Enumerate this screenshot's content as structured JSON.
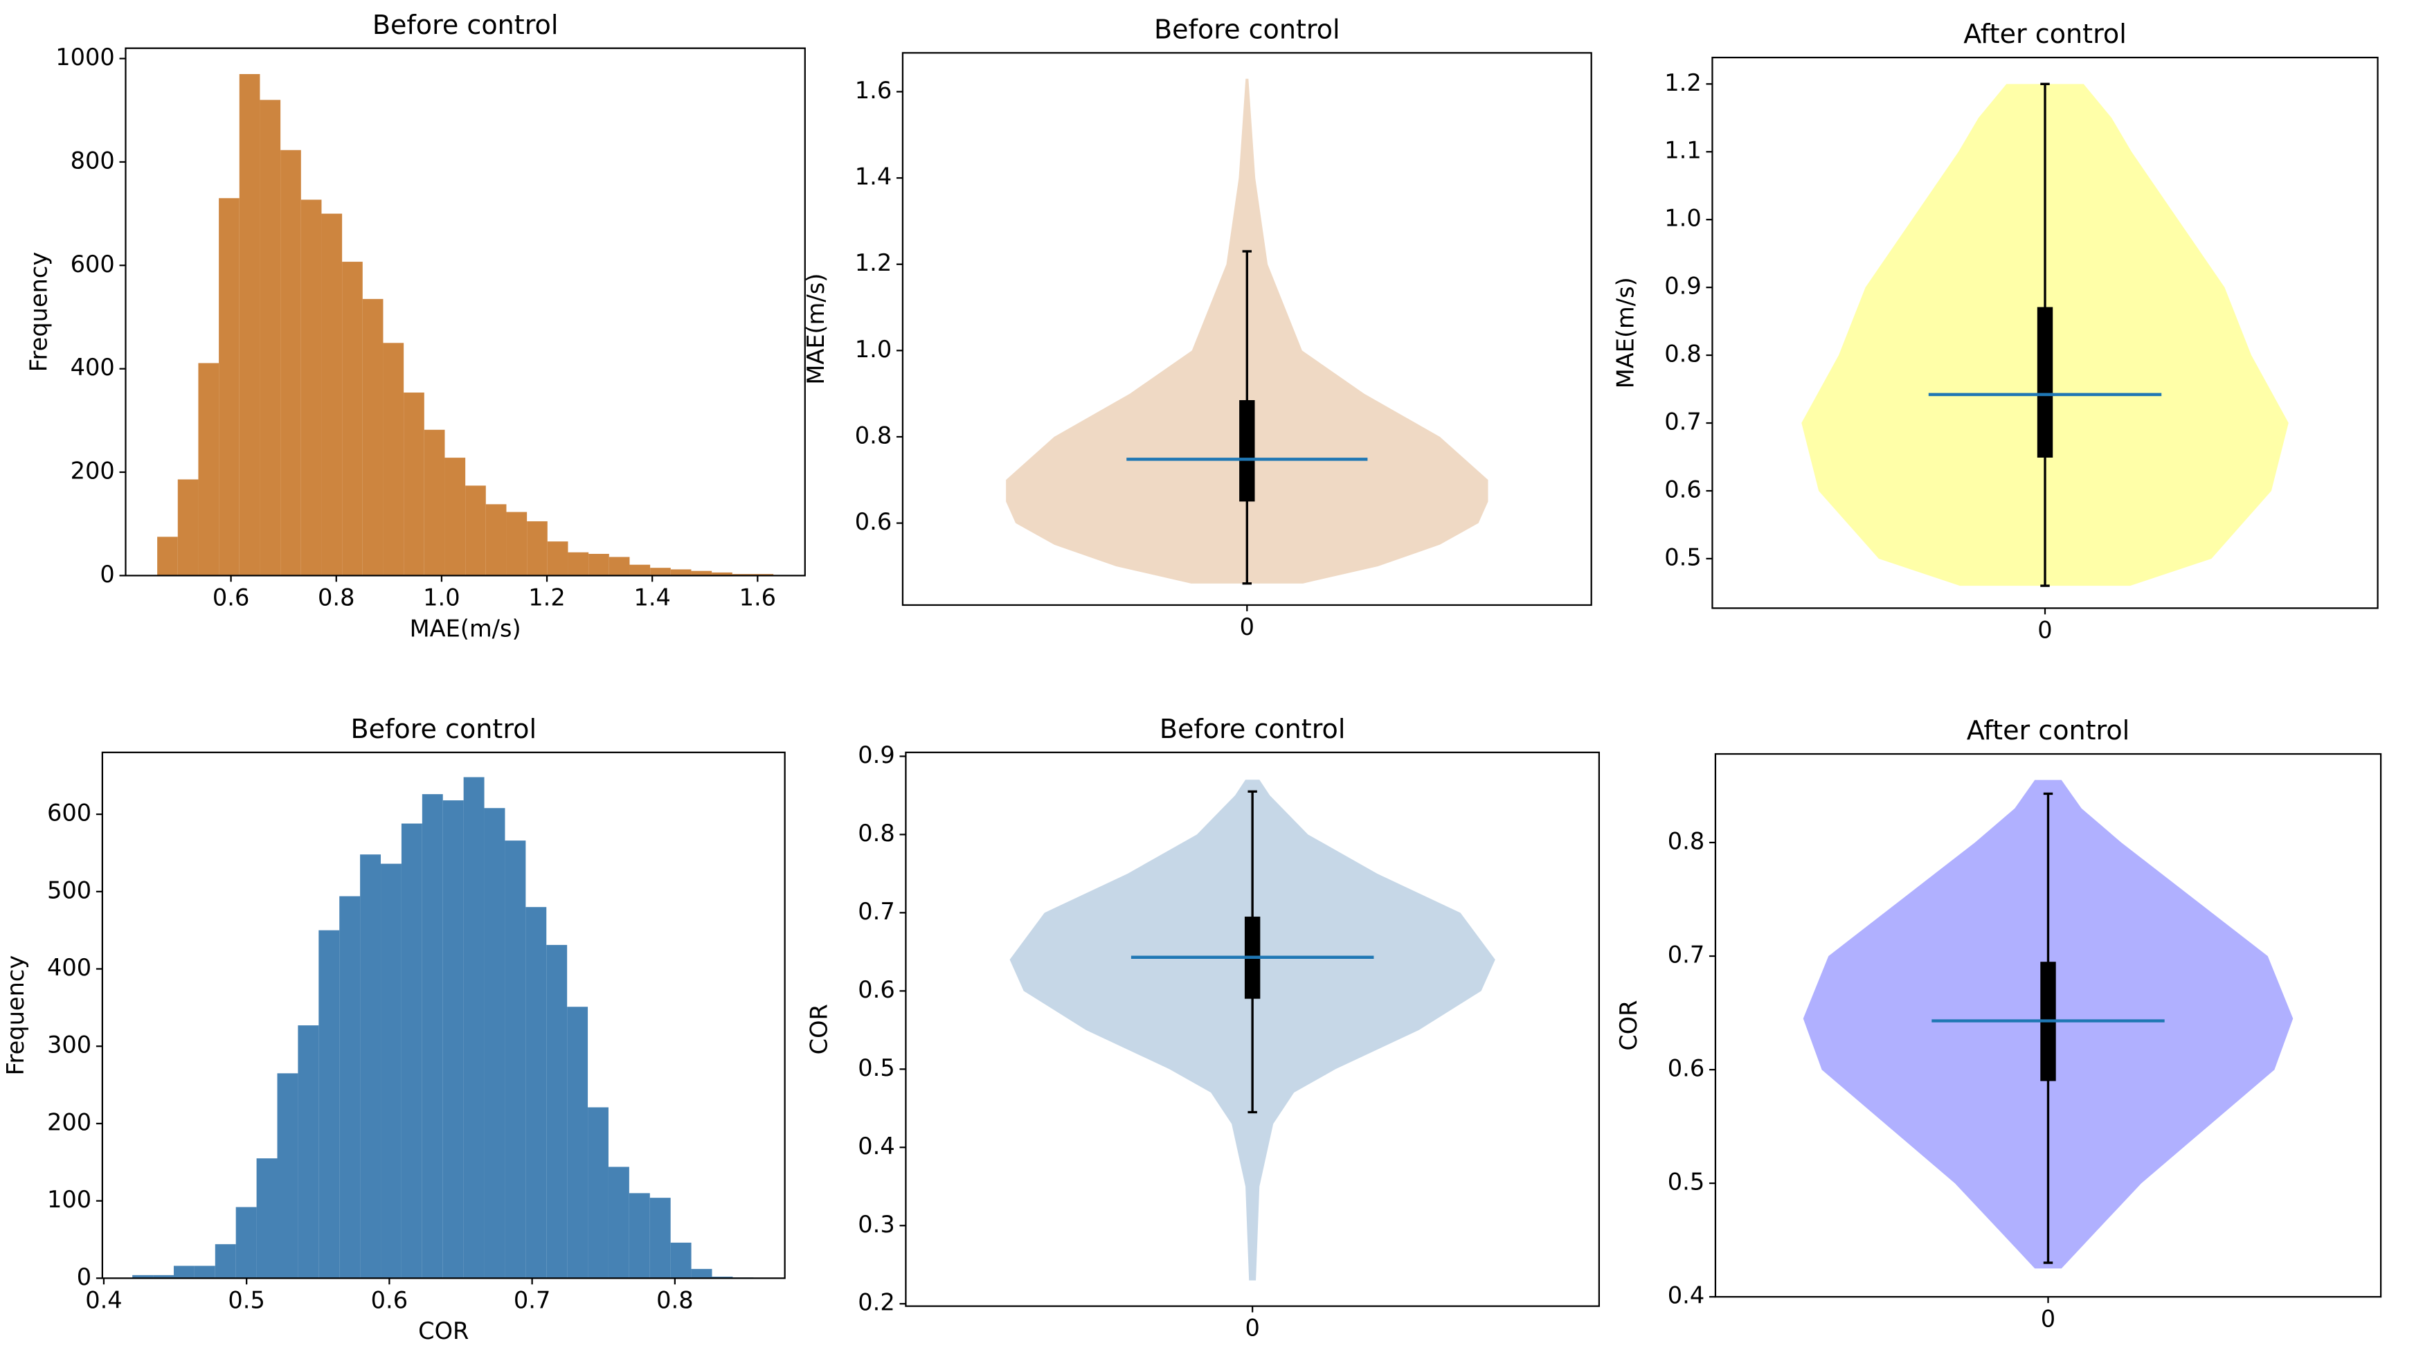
{
  "chart_data": [
    {
      "type": "histogram",
      "title": "Before control",
      "xlabel": "MAE(m/s)",
      "ylabel": "Frequency",
      "color": "#cd853f",
      "bins": [
        0.46,
        0.499,
        0.538,
        0.577,
        0.616,
        0.655,
        0.694,
        0.733,
        0.772,
        0.811,
        0.85,
        0.889,
        0.928,
        0.967,
        1.006,
        1.045,
        1.084,
        1.123,
        1.162,
        1.201,
        1.24,
        1.279,
        1.318,
        1.357,
        1.396,
        1.435,
        1.474,
        1.513,
        1.552,
        1.591,
        1.63
      ],
      "counts": [
        75,
        186,
        411,
        730,
        970,
        920,
        823,
        727,
        700,
        607,
        535,
        450,
        354,
        282,
        228,
        174,
        138,
        123,
        105,
        66,
        45,
        42,
        36,
        21,
        15,
        12,
        9,
        6,
        3,
        3
      ],
      "xlim": [
        0.4,
        1.69
      ],
      "xticks": [
        0.6,
        0.8,
        {
          "value": 1,
          "label": "1.0"
        },
        1.2,
        1.4,
        1.6
      ],
      "ylim": [
        0,
        1020
      ],
      "yticks": [
        0,
        200,
        400,
        600,
        800,
        1000
      ]
    },
    {
      "type": "violin",
      "title": "Before control",
      "ylabel": "MAE(m/s)",
      "color": "#efd9c4",
      "kde": {
        "y": [
          0.46,
          0.5,
          0.55,
          0.6,
          0.65,
          0.7,
          0.8,
          0.9,
          1.0,
          1.2,
          1.4,
          1.63
        ],
        "half_width": [
          0.081,
          0.19,
          0.28,
          0.336,
          0.35,
          0.35,
          0.28,
          0.17,
          0.08,
          0.03,
          0.012,
          0.002
        ]
      },
      "quartiles": [
        0.65,
        0.885
      ],
      "whiskers": [
        0.46,
        1.23
      ],
      "mean": 0.748,
      "xlim": [
        -0.5,
        0.5
      ],
      "xticks": [
        0
      ],
      "ylim": [
        0.41,
        1.69
      ],
      "yticks": [
        0.6,
        0.8,
        {
          "value": 1,
          "label": "1.0"
        },
        1.2,
        1.4,
        1.6
      ]
    },
    {
      "type": "violin",
      "title": "After control",
      "ylabel": "MAE(m/s)",
      "color": "#ffffa8",
      "kde": {
        "y": [
          0.46,
          0.5,
          0.6,
          0.7,
          0.8,
          0.9,
          1.0,
          1.1,
          1.15,
          1.2
        ],
        "half_width": [
          0.128,
          0.25,
          0.34,
          0.366,
          0.31,
          0.27,
          0.2,
          0.13,
          0.1,
          0.058
        ]
      },
      "quartiles": [
        0.649,
        0.871
      ],
      "whiskers": [
        0.46,
        1.2
      ],
      "mean": 0.742,
      "xlim": [
        -0.5,
        0.5
      ],
      "xticks": [
        0
      ],
      "ylim": [
        0.427,
        1.239
      ],
      "yticks": [
        0.5,
        0.6,
        0.7,
        0.8,
        0.9,
        {
          "value": 1,
          "label": "1.0"
        },
        1.1,
        1.2
      ]
    },
    {
      "type": "histogram",
      "title": "Before control",
      "xlabel": "COR",
      "ylabel": "Frequency",
      "color": "#4682b4",
      "bins": [
        0.42,
        0.4345,
        0.449,
        0.4635,
        0.478,
        0.4925,
        0.507,
        0.5215,
        0.536,
        0.5505,
        0.565,
        0.5795,
        0.594,
        0.6085,
        0.623,
        0.6375,
        0.652,
        0.6665,
        0.681,
        0.6955,
        0.71,
        0.7245,
        0.739,
        0.7535,
        0.768,
        0.7825,
        0.797,
        0.8115,
        0.826,
        0.8405,
        0.855
      ],
      "counts": [
        4,
        4,
        16,
        16,
        44,
        92,
        155,
        265,
        327,
        450,
        494,
        548,
        536,
        588,
        626,
        618,
        648,
        608,
        566,
        480,
        431,
        351,
        221,
        144,
        110,
        104,
        46,
        12,
        2,
        1
      ],
      "xlim": [
        0.399,
        0.877
      ],
      "xticks": [
        0.4,
        0.5,
        0.6,
        0.7,
        0.8
      ],
      "ylim": [
        0,
        680
      ],
      "yticks": [
        0,
        100,
        200,
        300,
        400,
        500,
        600
      ]
    },
    {
      "type": "violin",
      "title": "Before control",
      "ylabel": "COR",
      "color": "#c6d7e7",
      "kde": {
        "y": [
          0.23,
          0.35,
          0.43,
          0.47,
          0.5,
          0.55,
          0.6,
          0.64,
          0.7,
          0.75,
          0.8,
          0.85,
          0.87
        ],
        "half_width": [
          0.005,
          0.01,
          0.03,
          0.06,
          0.12,
          0.24,
          0.33,
          0.35,
          0.3,
          0.18,
          0.08,
          0.025,
          0.01
        ]
      },
      "quartiles": [
        0.59,
        0.695
      ],
      "whiskers": [
        0.445,
        0.855
      ],
      "mean": 0.643,
      "xlim": [
        -0.5,
        0.5
      ],
      "xticks": [
        0
      ],
      "ylim": [
        0.197,
        0.905
      ],
      "yticks": [
        0.2,
        0.3,
        0.4,
        0.5,
        0.6,
        0.7,
        0.8,
        0.9
      ]
    },
    {
      "type": "violin",
      "title": "After control",
      "ylabel": "COR",
      "color": "#b0b0ff",
      "kde": {
        "y": [
          0.425,
          0.45,
          0.5,
          0.55,
          0.6,
          0.645,
          0.7,
          0.75,
          0.8,
          0.83,
          0.855
        ],
        "half_width": [
          0.02,
          0.06,
          0.14,
          0.24,
          0.34,
          0.368,
          0.33,
          0.22,
          0.11,
          0.05,
          0.02
        ]
      },
      "quartiles": [
        0.59,
        0.695
      ],
      "whiskers": [
        0.43,
        0.843
      ],
      "mean": 0.643,
      "xlim": [
        -0.5,
        0.5
      ],
      "xticks": [
        0
      ],
      "ylim": [
        0.4,
        0.878
      ],
      "yticks": [
        0.4,
        0.5,
        0.6,
        0.7,
        0.8
      ]
    }
  ]
}
